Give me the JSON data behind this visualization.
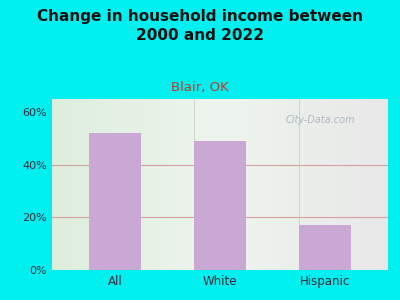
{
  "title": "Change in household income between\n2000 and 2022",
  "subtitle": "Blair, OK",
  "categories": [
    "All",
    "White",
    "Hispanic"
  ],
  "values": [
    52,
    49,
    17
  ],
  "bar_color": "#c9a8d4",
  "title_fontsize": 11,
  "subtitle_fontsize": 9.5,
  "subtitle_color": "#c0392b",
  "title_color": "#111111",
  "background_outer": "#00f0f0",
  "tick_label_color": "#2a2a3e",
  "ylim": [
    0,
    65
  ],
  "yticks": [
    0,
    20,
    40,
    60
  ],
  "ytick_labels": [
    "0%",
    "20%",
    "40%",
    "60%"
  ],
  "watermark": "City-Data.com",
  "grid_color": "#d4a0a0",
  "plot_bg": "#f2f5ea"
}
